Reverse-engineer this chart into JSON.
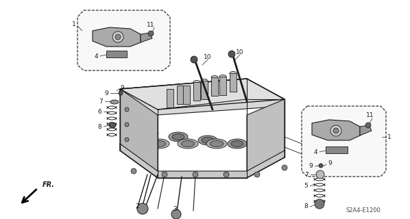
{
  "bg_color": "#ffffff",
  "line_color": "#1a1a1a",
  "diagram_code": "S2A4-E1200",
  "fr_text": "FR.",
  "body_color": "#e8e8e8",
  "callout_color": "#f5f5f5"
}
